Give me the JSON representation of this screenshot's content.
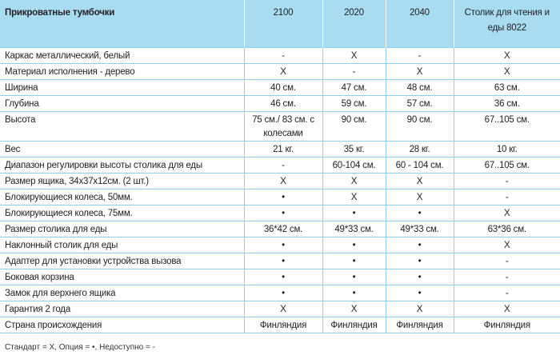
{
  "table": {
    "header": [
      "Прикроватные тумбочки",
      "2100",
      "2020",
      "2040",
      "Столик для чтения и еды 8022"
    ],
    "rows": [
      [
        "Каркас металлический, белый",
        "-",
        "X",
        "-",
        "X"
      ],
      [
        "Материал исполнения - дерево",
        "X",
        "-",
        "X",
        "X"
      ],
      [
        "Ширина",
        "40 см.",
        "47 см.",
        "48 см.",
        "63 см."
      ],
      [
        "Глубина",
        "46 см.",
        "59 см.",
        "57 см.",
        "36 см."
      ],
      [
        "Высота",
        "75 см./ 83 см. с колесами",
        "90 см.",
        "90 см.",
        "67..105 см."
      ],
      [
        "Вес",
        "21 кг.",
        "35 кг.",
        "28 кг.",
        "10 кг."
      ],
      [
        "Диапазон регулировки высоты столика для еды",
        "-",
        "60-104 см.",
        "60 - 104 см.",
        "67..105 см."
      ],
      [
        "Размер ящика, 34x37x12см. (2 шт.)",
        "X",
        "X",
        "X",
        "-"
      ],
      [
        "Блокирующиеся колеса, 50мм.",
        "•",
        "X",
        "X",
        "-"
      ],
      [
        "Блокирующиеся колеса, 75мм.",
        "•",
        "•",
        "•",
        "X"
      ],
      [
        "Размер столика для еды",
        "36*42 см.",
        "49*33 см.",
        "49*33 см.",
        "63*36 см."
      ],
      [
        "Наклонный столик для еды",
        "•",
        "•",
        "•",
        "X"
      ],
      [
        "Адаптер для установки устройства вызова",
        "•",
        "•",
        "•",
        "-"
      ],
      [
        "Боковая корзина",
        "•",
        "•",
        "•",
        "-"
      ],
      [
        "Замок для верхнего ящика",
        "•",
        "•",
        "•",
        "-"
      ],
      [
        "Гарантия 2 года",
        "X",
        "X",
        "X",
        "X"
      ],
      [
        "Страна происхождения",
        "Финляндия",
        "Финляндия",
        "Финляндия",
        "Финляндия"
      ]
    ]
  },
  "legend": "Стандарт  = X, Опция  = •, Недоступно = -"
}
